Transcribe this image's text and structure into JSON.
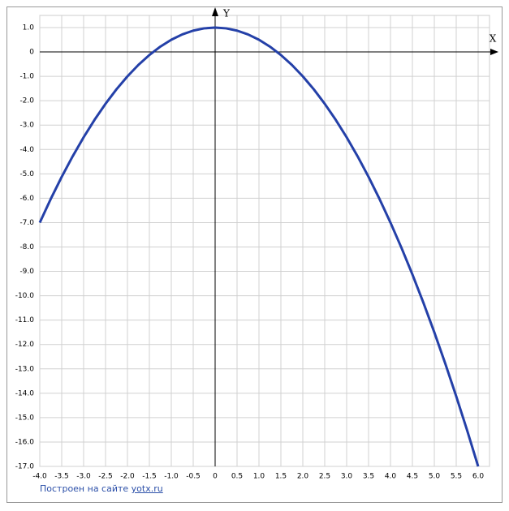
{
  "chart_data": {
    "type": "line",
    "axis_labels": {
      "x": "X",
      "y": "Y"
    },
    "x": [
      -4,
      -3.75,
      -3.5,
      -3.25,
      -3,
      -2.75,
      -2.5,
      -2.25,
      -2,
      -1.75,
      -1.5,
      -1.25,
      -1,
      -0.75,
      -0.5,
      -0.25,
      0,
      0.25,
      0.5,
      0.75,
      1,
      1.25,
      1.5,
      1.75,
      2,
      2.25,
      2.5,
      2.75,
      3,
      3.25,
      3.5,
      3.75,
      4,
      4.25,
      4.5,
      4.75,
      5,
      5.25,
      5.5,
      5.75,
      6
    ],
    "values": [
      -7,
      -6.03125,
      -5.125,
      -4.28125,
      -3.5,
      -2.78125,
      -2.125,
      -1.53125,
      -1,
      -0.53125,
      -0.125,
      0.21875,
      0.5,
      0.71875,
      0.875,
      0.96875,
      1,
      0.96875,
      0.875,
      0.71875,
      0.5,
      0.21875,
      -0.125,
      -0.53125,
      -1,
      -1.53125,
      -2.125,
      -2.78125,
      -3.5,
      -4.28125,
      -5.125,
      -6.03125,
      -7,
      -8.03125,
      -9.125,
      -10.28125,
      -11.5,
      -12.78125,
      -14.125,
      -15.53125,
      -17
    ],
    "color": "#2440a8",
    "xlim": [
      -4,
      6
    ],
    "ylim": [
      -17,
      1
    ],
    "xticks": [
      {
        "value": -4,
        "label": "-4.0"
      },
      -3.5,
      {
        "value": -3,
        "label": "-3.0"
      },
      -2.5,
      {
        "value": -2,
        "label": "-2.0"
      },
      -1.5,
      {
        "value": -1,
        "label": "-1.0"
      },
      -0.5,
      0,
      0.5,
      {
        "value": 1,
        "label": "1.0"
      },
      1.5,
      {
        "value": 2,
        "label": "2.0"
      },
      2.5,
      {
        "value": 3,
        "label": "3.0"
      },
      3.5,
      {
        "value": 4,
        "label": "4.0"
      },
      4.5,
      {
        "value": 5,
        "label": "5.0"
      },
      5.5,
      {
        "value": 6,
        "label": "6.0"
      }
    ],
    "yticks": [
      {
        "value": 1,
        "label": "1.0"
      },
      0,
      {
        "value": -1,
        "label": "-1.0"
      },
      {
        "value": -2,
        "label": "-2.0"
      },
      {
        "value": -3,
        "label": "-3.0"
      },
      {
        "value": -4,
        "label": "-4.0"
      },
      {
        "value": -5,
        "label": "-5.0"
      },
      {
        "value": -6,
        "label": "-6.0"
      },
      {
        "value": -7,
        "label": "-7.0"
      },
      {
        "value": -8,
        "label": "-8.0"
      },
      {
        "value": -9,
        "label": "-9.0"
      },
      {
        "value": -10,
        "label": "-10.0"
      },
      {
        "value": -11,
        "label": "-11.0"
      },
      {
        "value": -12,
        "label": "-12.0"
      },
      {
        "value": -13,
        "label": "-13.0"
      },
      {
        "value": -14,
        "label": "-14.0"
      },
      {
        "value": -15,
        "label": "-15.0"
      },
      {
        "value": -16,
        "label": "-16.0"
      },
      {
        "value": -17,
        "label": "-17.0"
      }
    ],
    "grid": true
  },
  "footer": {
    "text": "Построен на сайте",
    "link": "yotx.ru"
  }
}
